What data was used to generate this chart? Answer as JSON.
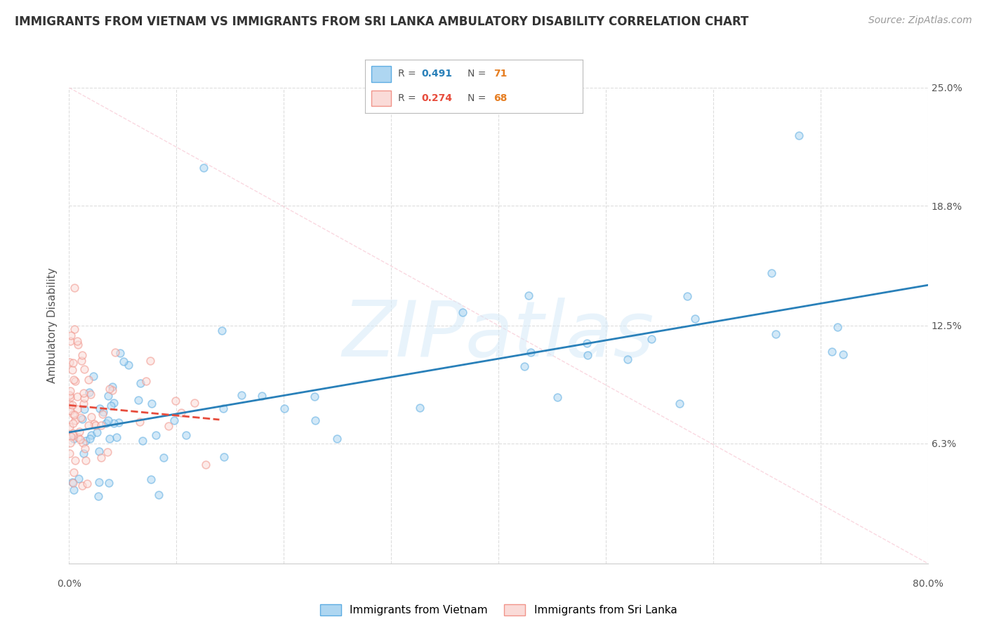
{
  "title": "IMMIGRANTS FROM VIETNAM VS IMMIGRANTS FROM SRI LANKA AMBULATORY DISABILITY CORRELATION CHART",
  "source": "Source: ZipAtlas.com",
  "ylabel": "Ambulatory Disability",
  "watermark_text": "ZIPatlas",
  "series_vietnam": {
    "label": "Immigrants from Vietnam",
    "R": 0.491,
    "N": 71,
    "face_color": "#AED6F1",
    "edge_color": "#5DADE2",
    "trend_color": "#2980B9"
  },
  "series_srilanka": {
    "label": "Immigrants from Sri Lanka",
    "R": 0.274,
    "N": 68,
    "face_color": "#FADBD8",
    "edge_color": "#F1948A",
    "trend_color": "#E74C3C"
  },
  "xlim": [
    0,
    80
  ],
  "ylim": [
    0,
    25
  ],
  "ytick_vals": [
    6.3,
    12.5,
    18.8,
    25.0
  ],
  "xtick_vals": [
    0,
    10,
    20,
    30,
    40,
    50,
    60,
    70,
    80
  ],
  "grid_color": "#DDDDDD",
  "bg_color": "#FFFFFF",
  "scatter_size": 60,
  "scatter_alpha": 0.55,
  "scatter_lw": 1.2,
  "trend_lw": 2.0,
  "ref_line_color": "#CCCCCC",
  "legend_R_color": "#2980B9",
  "legend_N_color": "#E67E22",
  "legend_R2_color": "#E74C3C",
  "title_fontsize": 12,
  "source_fontsize": 10,
  "tick_fontsize": 10,
  "ylabel_fontsize": 11
}
